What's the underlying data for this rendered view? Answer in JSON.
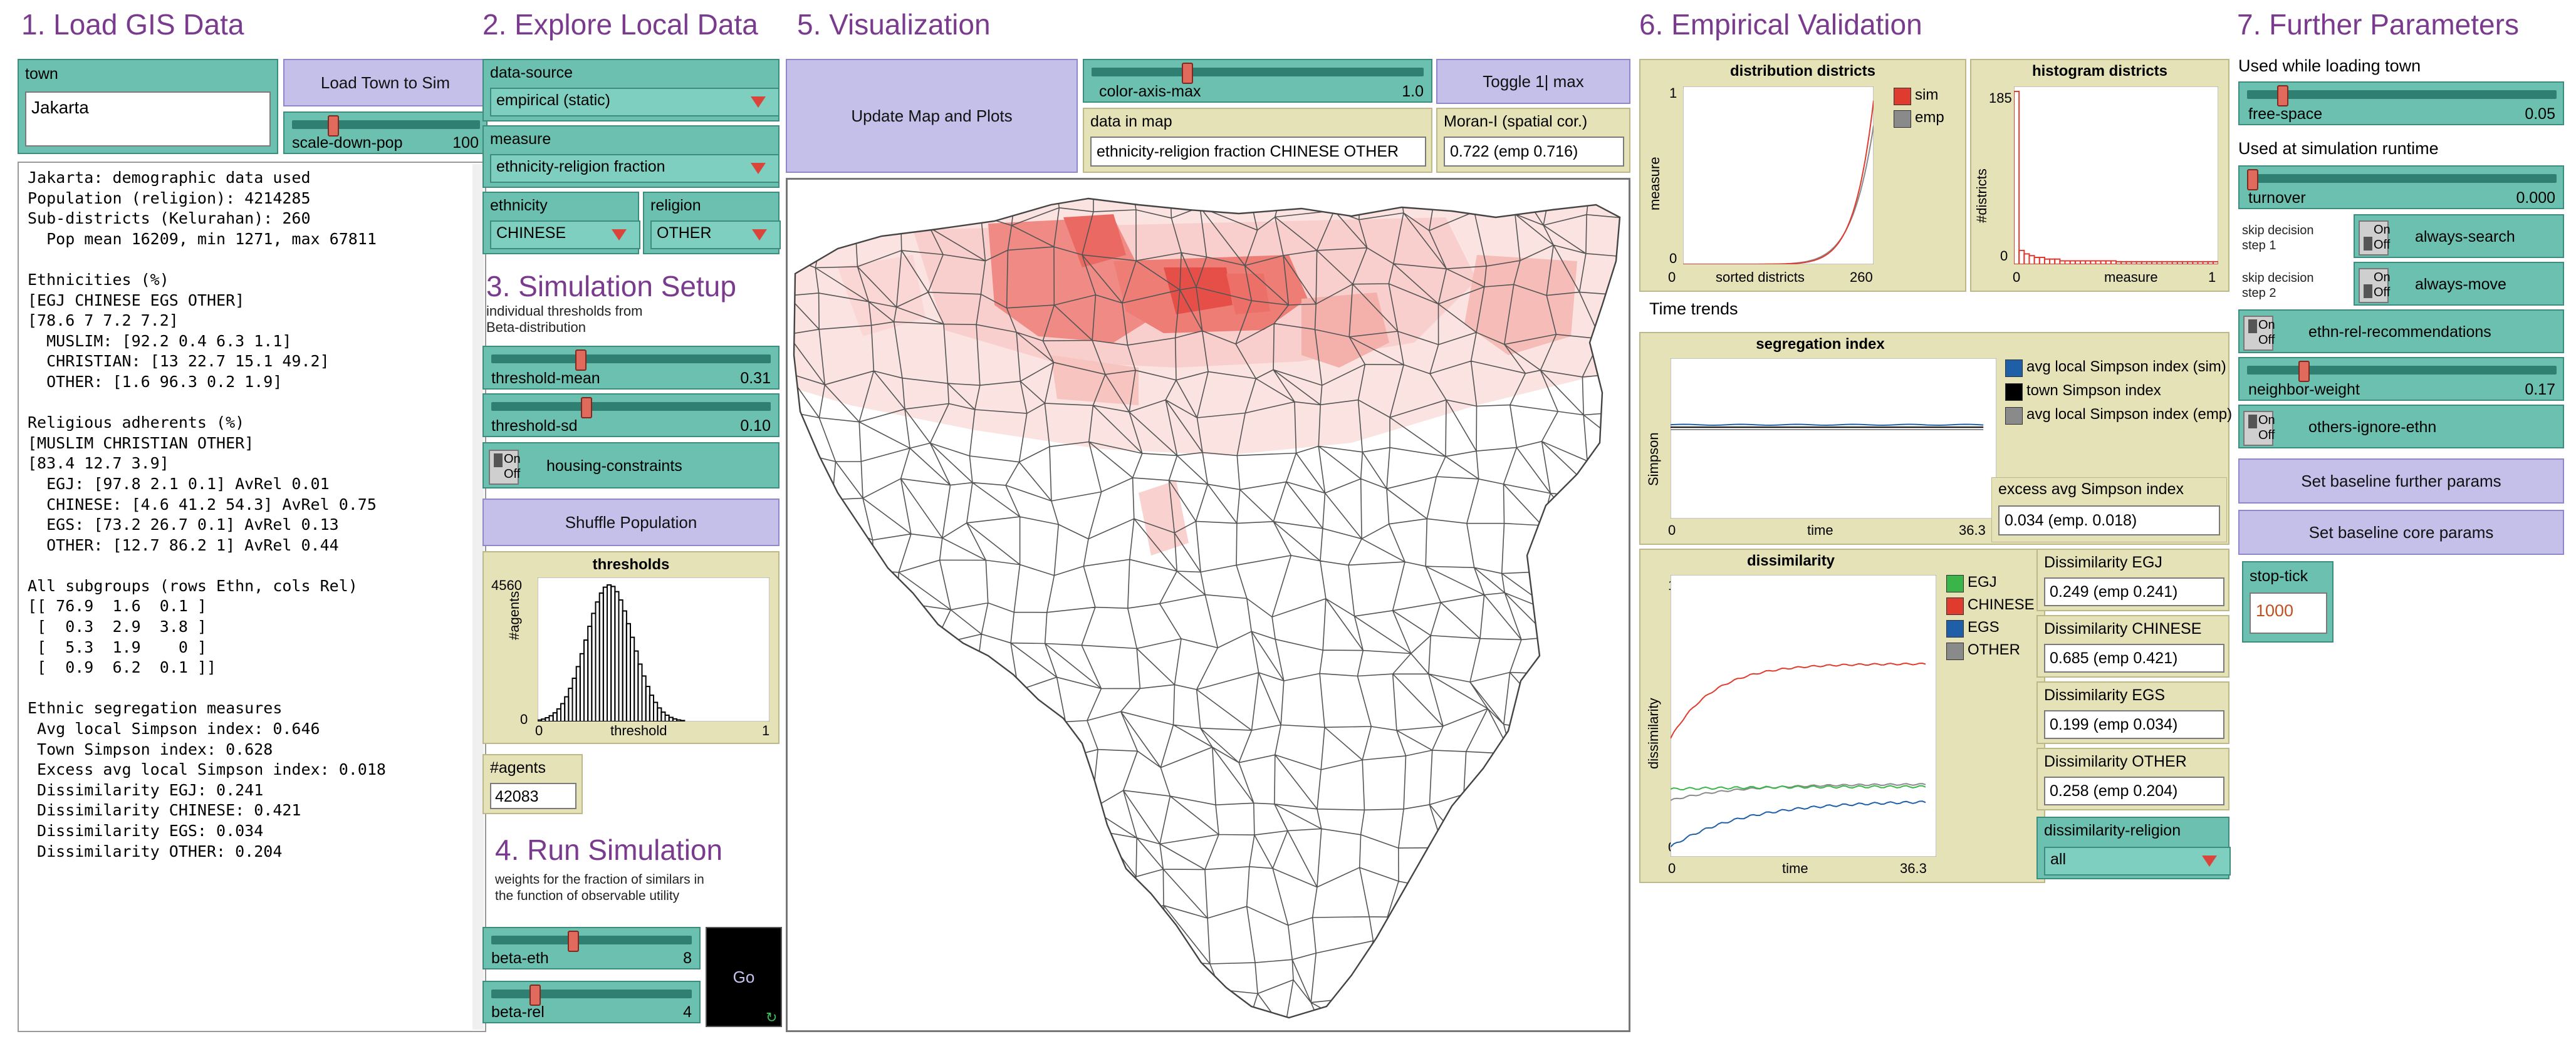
{
  "headers": {
    "s1": "1. Load GIS Data",
    "s2": "2. Explore Local Data",
    "s3": "3. Simulation Setup",
    "s4": "4. Run Simulation",
    "s5": "5. Visualization",
    "s6": "6. Empirical Validation",
    "s7": "7. Further Parameters"
  },
  "load": {
    "town_label": "town",
    "town_value": "Jakarta",
    "load_button": "Load Town to Sim",
    "scale_label": "scale-down-pop",
    "scale_value": "100",
    "scale_fraction": 0.2,
    "output": "Jakarta: demographic data used\nPopulation (religion): 4214285\nSub-districts (Kelurahan): 260\n  Pop mean 16209, min 1271, max 67811\n\nEthnicities (%)\n[EGJ CHINESE EGS OTHER]\n[78.6 7 7.2 7.2]\n  MUSLIM: [92.2 0.4 6.3 1.1]\n  CHRISTIAN: [13 22.7 15.1 49.2]\n  OTHER: [1.6 96.3 0.2 1.9]\n\nReligious adherents (%)\n[MUSLIM CHRISTIAN OTHER]\n[83.4 12.7 3.9]\n  EGJ: [97.8 2.1 0.1] AvRel 0.01\n  CHINESE: [4.6 41.2 54.3] AvRel 0.75\n  EGS: [73.2 26.7 0.1] AvRel 0.13\n  OTHER: [12.7 86.2 1] AvRel 0.44\n\nAll subgroups (rows Ethn, cols Rel)\n[[ 76.9  1.6  0.1 ]\n [  0.3  2.9  3.8 ]\n [  5.3  1.9    0 ]\n [  0.9  6.2  0.1 ]]\n\nEthnic segregation measures\n Avg local Simpson index: 0.646\n Town Simpson index: 0.628\n Excess avg local Simpson index: 0.018\n Dissimilarity EGJ: 0.241\n Dissimilarity CHINESE: 0.421\n Dissimilarity EGS: 0.034\n Dissimilarity OTHER: 0.204"
  },
  "explore": {
    "datasource_label": "data-source",
    "datasource_value": "empirical (static)",
    "measure_label": "measure",
    "measure_value": "ethnicity-religion fraction",
    "ethnicity_label": "ethnicity",
    "ethnicity_value": "CHINESE",
    "religion_label": "religion",
    "religion_value": "OTHER"
  },
  "setup": {
    "note": "individual thresholds from\nBeta-distribution",
    "threshold_mean_label": "threshold-mean",
    "threshold_mean_value": "0.31",
    "threshold_mean_fraction": 0.31,
    "threshold_sd_label": "threshold-sd",
    "threshold_sd_value": "0.10",
    "threshold_sd_fraction": 0.33,
    "housing_label": "housing-constraints",
    "on": "On",
    "off": "Off",
    "shuffle_button": "Shuffle Population",
    "thresholds_plot": {
      "title": "thresholds",
      "ylabel": "#agents",
      "xlabel": "threshold",
      "ymax": "4560",
      "ymin": "0",
      "xmin": "0",
      "xmax": "1"
    },
    "agents_label": "#agents",
    "agents_value": "42083"
  },
  "run": {
    "note": "weights for the fraction of similars in\nthe function of observable utility",
    "beta_eth_label": "beta-eth",
    "beta_eth_value": "8",
    "beta_eth_fraction": 0.4,
    "beta_rel_label": "beta-rel",
    "beta_rel_value": "4",
    "beta_rel_fraction": 0.2,
    "go_button": "Go"
  },
  "viz": {
    "update_button": "Update Map and Plots",
    "color_axis_label": "color-axis-max",
    "color_axis_value": "1.0",
    "color_axis_fraction": 0.28,
    "toggle_button": "Toggle 1| max",
    "data_in_map_label": "data in map",
    "data_in_map_value": "ethnicity-religion fraction CHINESE OTHER",
    "moran_label": "Moran-I (spatial cor.)",
    "moran_value": "0.722 (emp 0.716)"
  },
  "validation": {
    "dist_plot": {
      "title": "distribution districts",
      "ylabel": "measure",
      "xlabel": "sorted districts",
      "xmin": "0",
      "xmax": "260",
      "ymin": "0",
      "ymax": "1",
      "legend": [
        "sim",
        "emp"
      ]
    },
    "hist_plot": {
      "title": "histogram districts",
      "ylabel": "#districts",
      "xlabel": "measure",
      "ymax": "185",
      "ymin": "0",
      "xmin": "0",
      "xmax": "1"
    },
    "time_trends": "Time trends",
    "seg_plot": {
      "title": "segregation index",
      "ylabel": "Simpson",
      "xlabel": "time",
      "xmin": "0",
      "xmax": "36.3",
      "legend": [
        "avg local Simpson index (sim)",
        "town Simpson index",
        "avg local Simpson index (emp)"
      ]
    },
    "excess_label": "excess avg Simpson index",
    "excess_value": "0.034 (emp. 0.018)",
    "dis_plot": {
      "title": "dissimilarity",
      "ylabel": "dissimilarity",
      "xlabel": "time",
      "xmin": "0",
      "xmax": "36.3",
      "ymin": "0",
      "ymax": "1",
      "legend": [
        "EGJ",
        "CHINESE",
        "EGS",
        "OTHER"
      ]
    },
    "dis_egj_label": "Dissimilarity EGJ",
    "dis_egj_value": "0.249 (emp 0.241)",
    "dis_chinese_label": "Dissimilarity CHINESE",
    "dis_chinese_value": "0.685 (emp 0.421)",
    "dis_egs_label": "Dissimilarity EGS",
    "dis_egs_value": "0.199 (emp 0.034)",
    "dis_other_label": "Dissimilarity OTHER",
    "dis_other_value": "0.258 (emp 0.204)",
    "dis_religion_label": "dissimilarity-religion",
    "dis_religion_value": "all"
  },
  "further": {
    "loading_note": "Used while loading town",
    "free_space_label": "free-space",
    "free_space_value": "0.05",
    "free_space_fraction": 0.1,
    "runtime_note": "Used at simulation runtime",
    "turnover_label": "turnover",
    "turnover_value": "0.000",
    "turnover_fraction": 0.0,
    "skip1_note": "skip decision\nstep 1",
    "always_search_label": "always-search",
    "skip2_note": "skip decision\nstep 2",
    "always_move_label": "always-move",
    "recommend_label": "ethn-rel-recommendations",
    "neighbor_weight_label": "neighbor-weight",
    "neighbor_weight_value": "0.17",
    "neighbor_weight_fraction": 0.17,
    "others_ignore_label": "others-ignore-ethn",
    "baseline_further_button": "Set baseline further params",
    "baseline_core_button": "Set baseline core params",
    "stop_tick_label": "stop-tick",
    "stop_tick_value": "1000"
  },
  "colors": {
    "accent_purple": "#7a3b8f",
    "widget_green": "#6cc0b0",
    "monitor_tan": "#e6e2b8",
    "button_lavender": "#c4c0ea",
    "sim_red": "#e03b2f",
    "emp_gray": "#8a8a8a"
  }
}
